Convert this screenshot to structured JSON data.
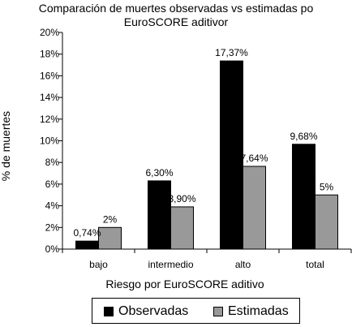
{
  "chart_data": {
    "type": "bar",
    "title_lines": [
      "Comparación de muertes observadas vs estimadas po",
      "EuroSCORE aditivor"
    ],
    "xlabel": "Riesgo por EuroSCORE aditivo",
    "ylabel": "% de muertes",
    "categories": [
      "bajo",
      "intermedio",
      "alto",
      "total"
    ],
    "ylim": [
      0,
      20
    ],
    "yticks": [
      0,
      2,
      4,
      6,
      8,
      10,
      12,
      14,
      16,
      18,
      20
    ],
    "ytick_labels": [
      "0%",
      "2%",
      "4%",
      "6%",
      "8%",
      "10%",
      "12%",
      "14%",
      "16%",
      "18%",
      "20%"
    ],
    "series": [
      {
        "name": "Observadas",
        "color": "#000000",
        "values": [
          0.74,
          6.3,
          17.37,
          9.68
        ],
        "labels": [
          "0,74%",
          "6,30%",
          "17,37%",
          "9,68%"
        ]
      },
      {
        "name": "Estimadas",
        "color": "#999999",
        "values": [
          2,
          3.9,
          7.64,
          5
        ],
        "labels": [
          "2%",
          "3,90%",
          "7,64%",
          "5%"
        ]
      }
    ],
    "legend_position": "bottom",
    "grid": false
  }
}
